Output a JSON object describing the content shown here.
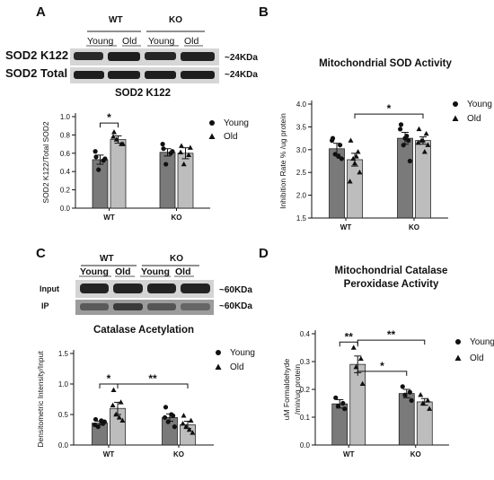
{
  "panels": {
    "A": {
      "letter": "A"
    },
    "B": {
      "letter": "B"
    },
    "C": {
      "letter": "C"
    },
    "D": {
      "letter": "D"
    }
  },
  "blot_A": {
    "groups": [
      "WT",
      "KO"
    ],
    "lanes": [
      "Young",
      "Old",
      "Young",
      "Old"
    ],
    "rows": [
      {
        "label": "SOD2 K122",
        "size": "~24KDa"
      },
      {
        "label": "SOD2 Total",
        "size": "~24KDa"
      }
    ]
  },
  "blot_C": {
    "groups": [
      "WT",
      "KO"
    ],
    "lanes": [
      "Young",
      "Old",
      "Young",
      "Old"
    ],
    "rows": [
      {
        "label": "Input",
        "size": "~60KDa"
      },
      {
        "label": "IP",
        "size": "~60KDa"
      }
    ]
  },
  "chart_data": [
    {
      "panel": "A",
      "type": "bar",
      "title": "SOD2 K122",
      "xlabel": "",
      "ylabel": "SOD2 K122/Total SOD2",
      "categories": [
        "WT",
        "KO"
      ],
      "ylim": [
        0,
        1.0
      ],
      "yticks": [
        0,
        0.2,
        0.4,
        0.6,
        0.8,
        1.0
      ],
      "ytick_labels": [
        "0.0",
        "0.2",
        "0.4",
        "0.6",
        "0.8",
        "1.0"
      ],
      "legend": {
        "position": "right",
        "entries": [
          "Young",
          "Old"
        ]
      },
      "colors": {
        "Young": "#7a7a7a",
        "Old": "#bdbdbd"
      },
      "series": [
        {
          "name": "Young",
          "values": [
            0.53,
            0.61
          ],
          "errors": [
            0.05,
            0.04
          ],
          "points": [
            [
              0.56,
              0.52,
              0.42,
              0.54,
              0.62
            ],
            [
              0.65,
              0.6,
              0.48,
              0.62,
              0.7
            ]
          ]
        },
        {
          "name": "Old",
          "values": [
            0.75,
            0.6
          ],
          "errors": [
            0.04,
            0.06
          ],
          "points": [
            [
              0.83,
              0.7,
              0.75,
              0.7,
              0.78
            ],
            [
              0.68,
              0.58,
              0.48,
              0.66,
              0.61
            ]
          ]
        }
      ],
      "significance": [
        {
          "from": [
            0,
            0
          ],
          "to": [
            0,
            1
          ],
          "label": "*"
        }
      ]
    },
    {
      "panel": "B",
      "type": "bar",
      "title": "Mitochondrial SOD Activity",
      "xlabel": "",
      "ylabel": "Inhibition Rate % /ug protein",
      "categories": [
        "WT",
        "KO"
      ],
      "ylim": [
        1.5,
        4.0
      ],
      "yticks": [
        1.5,
        2.0,
        2.5,
        3.0,
        3.5,
        4.0
      ],
      "ytick_labels": [
        "1.5",
        "2.0",
        "2.5",
        "3.0",
        "3.5",
        "4.0"
      ],
      "legend": {
        "position": "right",
        "entries": [
          "Young",
          "Old"
        ]
      },
      "colors": {
        "Young": "#7a7a7a",
        "Old": "#bdbdbd"
      },
      "series": [
        {
          "name": "Young",
          "values": [
            3.02,
            3.25
          ],
          "errors": [
            0.12,
            0.13
          ],
          "points": [
            [
              3.25,
              3.1,
              2.9,
              2.8,
              3.2,
              2.85
            ],
            [
              3.55,
              3.2,
              3.1,
              2.75,
              3.45,
              3.3,
              3.25
            ]
          ]
        },
        {
          "name": "Old",
          "values": [
            2.78,
            3.2
          ],
          "errors": [
            0.14,
            0.08
          ],
          "points": [
            [
              3.2,
              2.95,
              2.8,
              2.5,
              2.3,
              2.85,
              2.7
            ],
            [
              3.45,
              3.35,
              3.2,
              3.1,
              3.15,
              2.95,
              3.2
            ]
          ]
        }
      ],
      "significance": [
        {
          "from": [
            0,
            1
          ],
          "to": [
            1,
            1
          ],
          "label": "*"
        }
      ]
    },
    {
      "panel": "C",
      "type": "bar",
      "title": "Catalase Acetylation",
      "xlabel": "",
      "ylabel": "Densitometric Intensity/Input",
      "categories": [
        "WT",
        "KO"
      ],
      "ylim": [
        0,
        1.5
      ],
      "yticks": [
        0,
        0.5,
        1.0,
        1.5
      ],
      "ytick_labels": [
        "0.0",
        "0.5",
        "1.0",
        "1.5"
      ],
      "legend": {
        "position": "right",
        "entries": [
          "Young",
          "Old"
        ]
      },
      "colors": {
        "Young": "#7a7a7a",
        "Old": "#bdbdbd"
      },
      "series": [
        {
          "name": "Young",
          "values": [
            0.36,
            0.45
          ],
          "errors": [
            0.03,
            0.06
          ],
          "points": [
            [
              0.42,
              0.35,
              0.3,
              0.38,
              0.33,
              0.4
            ],
            [
              0.62,
              0.48,
              0.38,
              0.3,
              0.45,
              0.5
            ]
          ]
        },
        {
          "name": "Old",
          "values": [
            0.6,
            0.33
          ],
          "errors": [
            0.1,
            0.06
          ],
          "points": [
            [
              0.9,
              0.7,
              0.5,
              0.4,
              0.65,
              0.45
            ],
            [
              0.48,
              0.4,
              0.3,
              0.2,
              0.35,
              0.25
            ]
          ]
        }
      ],
      "significance": [
        {
          "from": [
            0,
            0
          ],
          "to": [
            0,
            1
          ],
          "label": "*"
        },
        {
          "from": [
            0,
            1
          ],
          "to": [
            1,
            1
          ],
          "label": "**"
        }
      ]
    },
    {
      "panel": "D",
      "type": "bar",
      "title": "Mitochondrial Catalase Peroxidase Activity",
      "title_lines": [
        "Mitochondrial Catalase",
        "Peroxidase Activity"
      ],
      "xlabel": "",
      "ylabel": "uM Formaldehyde /min/ug protein",
      "ylabel_lines": [
        "uM Formaldehyde",
        "/min/ug protein"
      ],
      "categories": [
        "WT",
        "KO"
      ],
      "ylim": [
        0,
        0.4
      ],
      "yticks": [
        0,
        0.1,
        0.2,
        0.3,
        0.4
      ],
      "ytick_labels": [
        "0.0",
        "0.1",
        "0.2",
        "0.3",
        "0.4"
      ],
      "legend": {
        "position": "right",
        "entries": [
          "Young",
          "Old"
        ]
      },
      "colors": {
        "Young": "#7a7a7a",
        "Old": "#bdbdbd"
      },
      "series": [
        {
          "name": "Young",
          "values": [
            0.148,
            0.185
          ],
          "errors": [
            0.015,
            0.015
          ],
          "points": [
            [
              0.17,
              0.15,
              0.14,
              0.13
            ],
            [
              0.21,
              0.19,
              0.18,
              0.16
            ]
          ]
        },
        {
          "name": "Old",
          "values": [
            0.29,
            0.155
          ],
          "errors": [
            0.03,
            0.012
          ],
          "points": [
            [
              0.35,
              0.31,
              0.28,
              0.22
            ],
            [
              0.18,
              0.16,
              0.15,
              0.13
            ]
          ]
        }
      ],
      "significance": [
        {
          "from": [
            0,
            0
          ],
          "to": [
            0,
            1
          ],
          "label": "**"
        },
        {
          "from": [
            0,
            1
          ],
          "to": [
            1,
            0
          ],
          "label": "*"
        },
        {
          "from": [
            0,
            1
          ],
          "to": [
            1,
            1
          ],
          "label": "**"
        }
      ]
    }
  ]
}
